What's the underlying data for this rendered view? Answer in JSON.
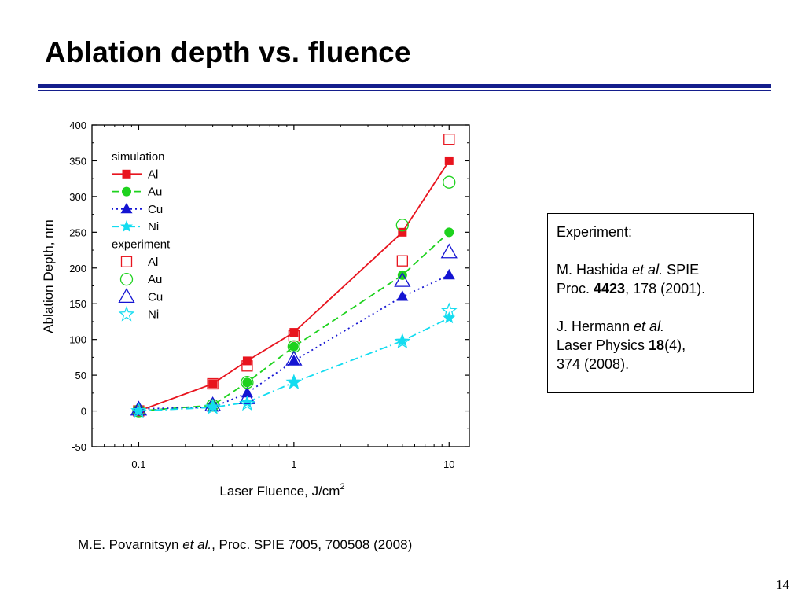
{
  "slide": {
    "title": "Ablation depth vs. fluence",
    "page_number": "14",
    "colors": {
      "title_rule": "#141e8c"
    }
  },
  "references": {
    "heading": "Experiment:",
    "ref1": {
      "authors": "M. Hashida ",
      "etal": "et al.",
      "after_etal": " SPIE",
      "line2_pre": "Proc. ",
      "volume": "4423",
      "line2_post": ", 178 (2001)."
    },
    "ref2": {
      "authors": "J. Hermann ",
      "etal": "et al.",
      "line2_pre": "Laser Physics ",
      "volume": "18",
      "line2_post": "(4),",
      "line3": "374 (2008)."
    }
  },
  "caption": {
    "authors": "M.E. Povarnitsyn ",
    "etal": "et al.",
    "rest": ", Proc. SPIE 7005, 700508 (2008)"
  },
  "chart_data": {
    "type": "line",
    "xlabel": "Laser Fluence, J/cm",
    "xlabel_sup": "2",
    "ylabel": "Ablation Depth, nm",
    "xscale": "log",
    "xlim": [
      0.05,
      13.5
    ],
    "ylim": [
      -50,
      400
    ],
    "x_ticks": [
      0.1,
      1,
      10
    ],
    "x_tick_labels": [
      "0.1",
      "1",
      "10"
    ],
    "y_ticks": [
      -50,
      0,
      50,
      100,
      150,
      200,
      250,
      300,
      350,
      400
    ],
    "y_tick_labels": [
      "-50",
      "0",
      "50",
      "100",
      "150",
      "200",
      "250",
      "300",
      "350",
      "400"
    ],
    "grid": false,
    "legend": {
      "position": "top-left",
      "group_labels": [
        "simulation",
        "experiment"
      ]
    },
    "series": [
      {
        "group": "simulation",
        "name": "Al",
        "color": "#e8141e",
        "marker": "filled-square",
        "line": "solid",
        "x": [
          0.1,
          0.3,
          0.5,
          1,
          5,
          10
        ],
        "y": [
          0,
          38,
          70,
          110,
          250,
          350
        ]
      },
      {
        "group": "simulation",
        "name": "Au",
        "color": "#1ed21e",
        "marker": "filled-circle",
        "line": "dashed",
        "x": [
          0.1,
          0.3,
          0.5,
          1,
          5,
          10
        ],
        "y": [
          0,
          8,
          40,
          90,
          190,
          250
        ]
      },
      {
        "group": "simulation",
        "name": "Cu",
        "color": "#1414d2",
        "marker": "filled-triangle",
        "line": "dotted",
        "x": [
          0.1,
          0.3,
          0.5,
          1,
          5,
          10
        ],
        "y": [
          3,
          5,
          25,
          70,
          160,
          190
        ]
      },
      {
        "group": "simulation",
        "name": "Ni",
        "color": "#14dcf0",
        "marker": "filled-star",
        "line": "dash-dot",
        "x": [
          0.1,
          0.3,
          0.5,
          1,
          5,
          10
        ],
        "y": [
          0,
          5,
          12,
          40,
          98,
          130
        ]
      },
      {
        "group": "experiment",
        "name": "Al",
        "color": "#e8141e",
        "marker": "open-square",
        "line": "none",
        "x": [
          0.1,
          0.3,
          0.5,
          1,
          5,
          10
        ],
        "y": [
          0,
          38,
          63,
          105,
          210,
          380
        ]
      },
      {
        "group": "experiment",
        "name": "Au",
        "color": "#1ed21e",
        "marker": "open-circle",
        "line": "none",
        "x": [
          0.1,
          0.3,
          0.5,
          1,
          5,
          10
        ],
        "y": [
          0,
          8,
          40,
          90,
          260,
          320
        ]
      },
      {
        "group": "experiment",
        "name": "Cu",
        "color": "#1414d2",
        "marker": "open-triangle",
        "line": "none",
        "x": [
          0.1,
          0.3,
          0.5,
          1,
          5,
          10
        ],
        "y": [
          2,
          8,
          18,
          72,
          182,
          222
        ]
      },
      {
        "group": "experiment",
        "name": "Ni",
        "color": "#14dcf0",
        "marker": "open-star",
        "line": "none",
        "x": [
          0.1,
          0.3,
          0.5,
          1,
          5,
          10
        ],
        "y": [
          0,
          5,
          10,
          40,
          97,
          140
        ]
      }
    ]
  }
}
